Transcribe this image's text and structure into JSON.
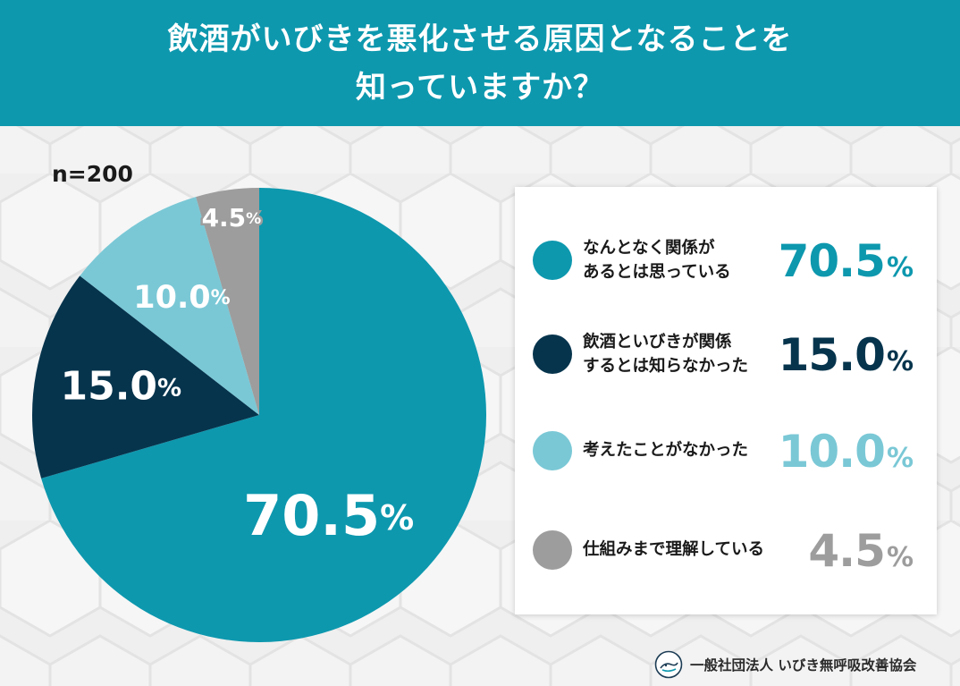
{
  "header": {
    "title_line1": "飲酒がいびきを悪化させる原因となることを",
    "title_line2": "知っていますか？"
  },
  "sample_size": "n=200",
  "legend": [
    {
      "label": "なんとなく関係が\nあるとは思っている",
      "value": "70.5",
      "pct": "%",
      "color": "#0d98ae",
      "value_color": "#0d98ae"
    },
    {
      "label": "飲酒といびきが関係\nするとは知らなかった",
      "value": "15.0",
      "pct": "%",
      "color": "#06344d",
      "value_color": "#06344d"
    },
    {
      "label": "考えたことがなかった",
      "value": "10.0",
      "pct": "%",
      "color": "#7ac8d6",
      "value_color": "#7ac8d6"
    },
    {
      "label": "仕組みまで理解している",
      "value": "4.5",
      "pct": "%",
      "color": "#9d9d9d",
      "value_color": "#9d9d9d"
    }
  ],
  "footer": {
    "organization": "一般社団法人 いびき無呼吸改善協会"
  },
  "chart_data": {
    "type": "pie",
    "title": "飲酒がいびきを悪化させる原因となることを知っていますか？",
    "n": 200,
    "unit": "%",
    "categories": [
      "なんとなく関係があるとは思っている",
      "飲酒といびきが関係するとは知らなかった",
      "考えたことがなかった",
      "仕組みまで理解している"
    ],
    "values": [
      70.5,
      15.0,
      10.0,
      4.5
    ],
    "colors": [
      "#0d98ae",
      "#06344d",
      "#7ac8d6",
      "#9d9d9d"
    ],
    "labels": [
      "70.5",
      "15.0",
      "10.0",
      "4.5"
    ],
    "start": "12 o'clock",
    "direction": "clockwise"
  }
}
